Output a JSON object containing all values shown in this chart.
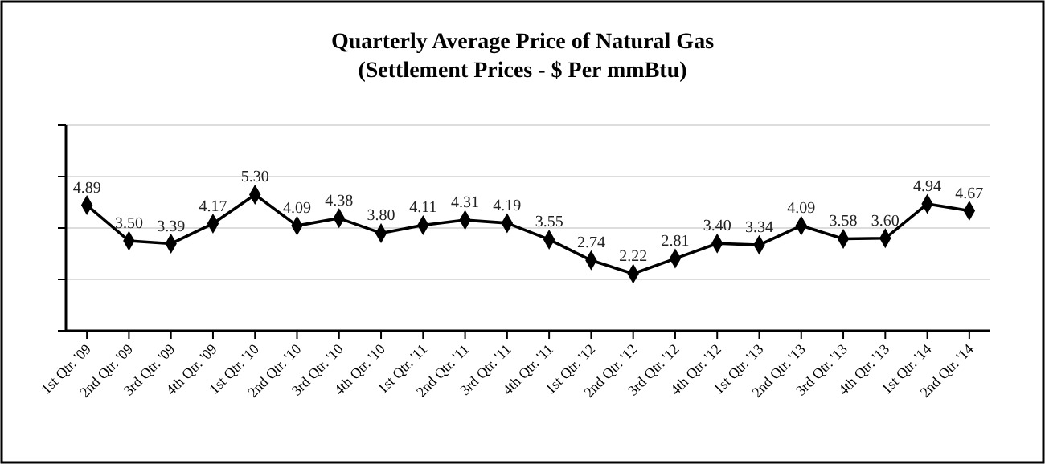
{
  "chart_data": {
    "type": "line",
    "title": "Quarterly Average Price of Natural Gas",
    "subtitle": "(Settlement Prices - $ Per mmBtu)",
    "categories": [
      "1st Qtr. '09",
      "2nd Qtr. '09",
      "3rd Qtr. '09",
      "4th Qtr. '09",
      "1st Qtr. '10",
      "2nd Qtr. '10",
      "3rd Qtr. '10",
      "4th Qtr. '10",
      "1st Qtr. '11",
      "2nd Qtr. '11",
      "3rd Qtr. '11",
      "4th Qtr. '11",
      "1st Qtr. '12",
      "2nd Qtr. '12",
      "3rd Qtr. '12",
      "4th Qtr. '12",
      "1st Qtr. '13",
      "2nd Qtr. '13",
      "3rd Qtr. '13",
      "4th Qtr. '13",
      "1st Qtr. '14",
      "2nd Qtr. '14"
    ],
    "series": [
      {
        "color": "#000000",
        "values": [
          4.89,
          3.5,
          3.39,
          4.17,
          5.3,
          4.09,
          4.38,
          3.8,
          4.11,
          4.31,
          4.19,
          3.55,
          2.74,
          2.22,
          2.81,
          3.4,
          3.34,
          4.09,
          3.58,
          3.6,
          4.94,
          4.67
        ],
        "value_labels": [
          "4.89",
          "3.50",
          "3.39",
          "4.17",
          "5.30",
          "4.09",
          "4.38",
          "3.80",
          "4.11",
          "4.31",
          "4.19",
          "3.55",
          "2.74",
          "2.22",
          "2.81",
          "3.40",
          "3.34",
          "4.09",
          "3.58",
          "3.60",
          "4.94",
          "4.67"
        ]
      }
    ],
    "ylim": [
      0,
      8
    ],
    "yticks": [
      {
        "value": 0,
        "label": null
      },
      {
        "value": 2,
        "label": null
      },
      {
        "value": 4,
        "label": null
      },
      {
        "value": 6,
        "label": null
      },
      {
        "value": 8,
        "label": null
      }
    ],
    "grid": "y",
    "marker": "diamond",
    "line_style": "solid"
  }
}
